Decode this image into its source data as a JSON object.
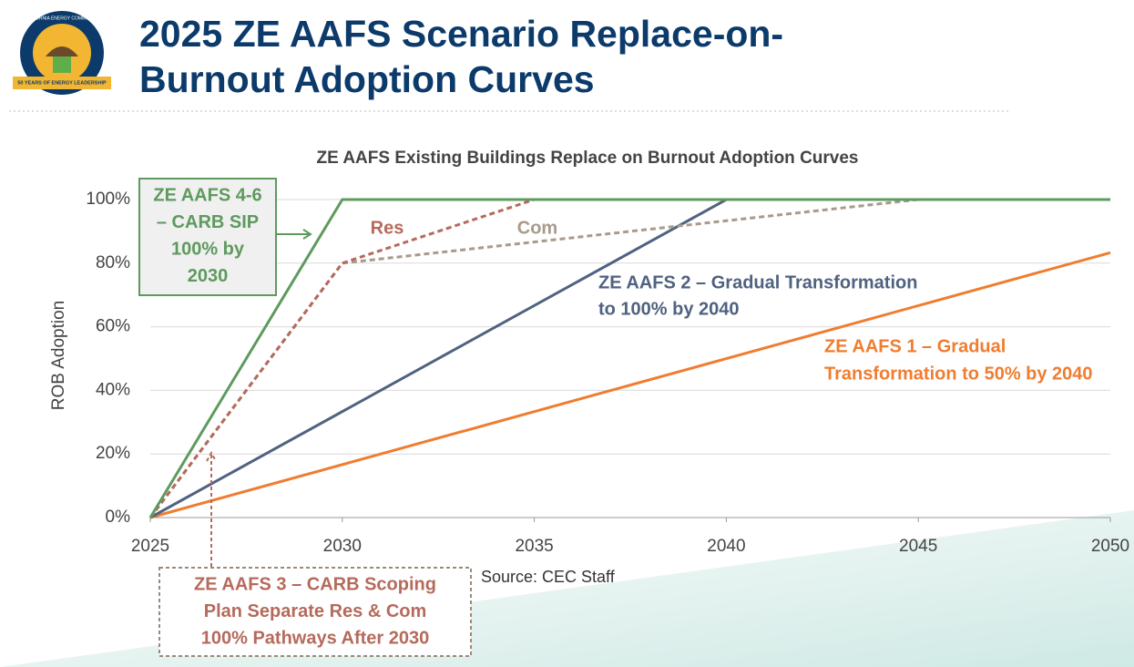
{
  "logo": {
    "ring_text": "CALIFORNIA ENERGY COMMISSION",
    "ribbon_text": "50 YEARS OF ENERGY LEADERSHIP"
  },
  "header": {
    "title_lines": [
      "2025 ZE AAFS Scenario Replace-on-",
      "Burnout Adoption Curves"
    ]
  },
  "chart_data": {
    "type": "line",
    "title": "ZE AAFS Existing Buildings Replace on Burnout Adoption Curves",
    "y_label": "ROB Adoption",
    "source": "Source: CEC Staff",
    "xlim": [
      2025,
      2050
    ],
    "xticks": [
      2025,
      2030,
      2035,
      2040,
      2045,
      2050
    ],
    "ylim": [
      0,
      100
    ],
    "yticks": [
      {
        "value": 0,
        "label": "0%"
      },
      {
        "value": 20,
        "label": "20%"
      },
      {
        "value": 40,
        "label": "40%"
      },
      {
        "value": 60,
        "label": "60%"
      },
      {
        "value": 80,
        "label": "80%"
      },
      {
        "value": 100,
        "label": "100%"
      }
    ],
    "grid": true,
    "series": [
      {
        "color": "#ef7d31",
        "dashed": false,
        "x": [
          2025,
          2050
        ],
        "values": [
          0,
          83.3
        ]
      },
      {
        "color": "#4f6280",
        "dashed": false,
        "x": [
          2025,
          2040,
          2050
        ],
        "values": [
          0,
          100,
          100
        ]
      },
      {
        "name": "Com",
        "color": "#a89a8c",
        "dashed": true,
        "x": [
          2025,
          2030,
          2045,
          2050
        ],
        "values": [
          0,
          80,
          100,
          100
        ]
      },
      {
        "name": "Res",
        "color": "#b56a5c",
        "dashed": true,
        "x": [
          2025,
          2030,
          2035,
          2050
        ],
        "values": [
          0,
          80,
          100,
          100
        ]
      },
      {
        "color": "#5e9a5e",
        "dashed": false,
        "x": [
          2025,
          2030,
          2050
        ],
        "values": [
          0,
          100,
          100
        ]
      }
    ],
    "annotations": [
      {
        "lines": [
          "ZE AAFS 4-6",
          "– CARB SIP",
          "100% by",
          "2030"
        ],
        "color": "#5e9a5e"
      },
      {
        "lines": [
          "ZE AAFS 2 – Gradual Transformation",
          "to 100% by 2040"
        ],
        "color": "#4f6280"
      },
      {
        "lines": [
          "ZE AAFS 1 – Gradual",
          "Transformation to 50% by 2040"
        ],
        "color": "#ef7d31"
      },
      {
        "lines": [
          "ZE AAFS 3 – CARB Scoping",
          "Plan Separate Res & Com",
          "100% Pathways After 2030"
        ],
        "color": "#b56a5c"
      }
    ]
  }
}
